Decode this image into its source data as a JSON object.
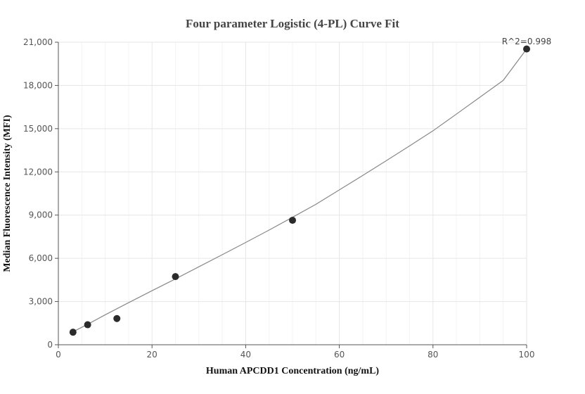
{
  "chart_data": {
    "type": "scatter",
    "title": "Four parameter Logistic (4-PL) Curve Fit",
    "xlabel": "Human APCDD1 Concentration (ng/mL)",
    "ylabel": "Median Fluorescence Intensity (MFI)",
    "xlim": [
      0,
      100
    ],
    "ylim": [
      0,
      21000
    ],
    "x_ticks": [
      0,
      20,
      40,
      60,
      80,
      100
    ],
    "x_tick_labels": [
      "0",
      "20",
      "40",
      "60",
      "80",
      "100"
    ],
    "y_ticks": [
      0,
      3000,
      6000,
      9000,
      12000,
      15000,
      18000,
      21000
    ],
    "y_tick_labels": [
      "0",
      "3,000",
      "6,000",
      "9,000",
      "12,000",
      "15,000",
      "18,000",
      "21,000"
    ],
    "grid": true,
    "annotation": "R^2=0.998",
    "series": [
      {
        "type": "scatter",
        "x": [
          3.125,
          6.25,
          12.5,
          25,
          50,
          100
        ],
        "y": [
          870,
          1390,
          1820,
          4730,
          8640,
          20530
        ]
      },
      {
        "type": "line",
        "x": [
          3.125,
          6.25,
          10,
          15,
          20,
          25,
          30,
          35,
          40,
          45,
          50,
          55,
          60,
          65,
          70,
          75,
          80,
          85,
          90,
          95,
          100
        ],
        "y": [
          900,
          1420,
          2080,
          2920,
          3750,
          4570,
          5410,
          6250,
          7100,
          7960,
          8850,
          9750,
          10750,
          11750,
          12770,
          13800,
          14850,
          16010,
          17180,
          18350,
          20530
        ]
      }
    ]
  }
}
